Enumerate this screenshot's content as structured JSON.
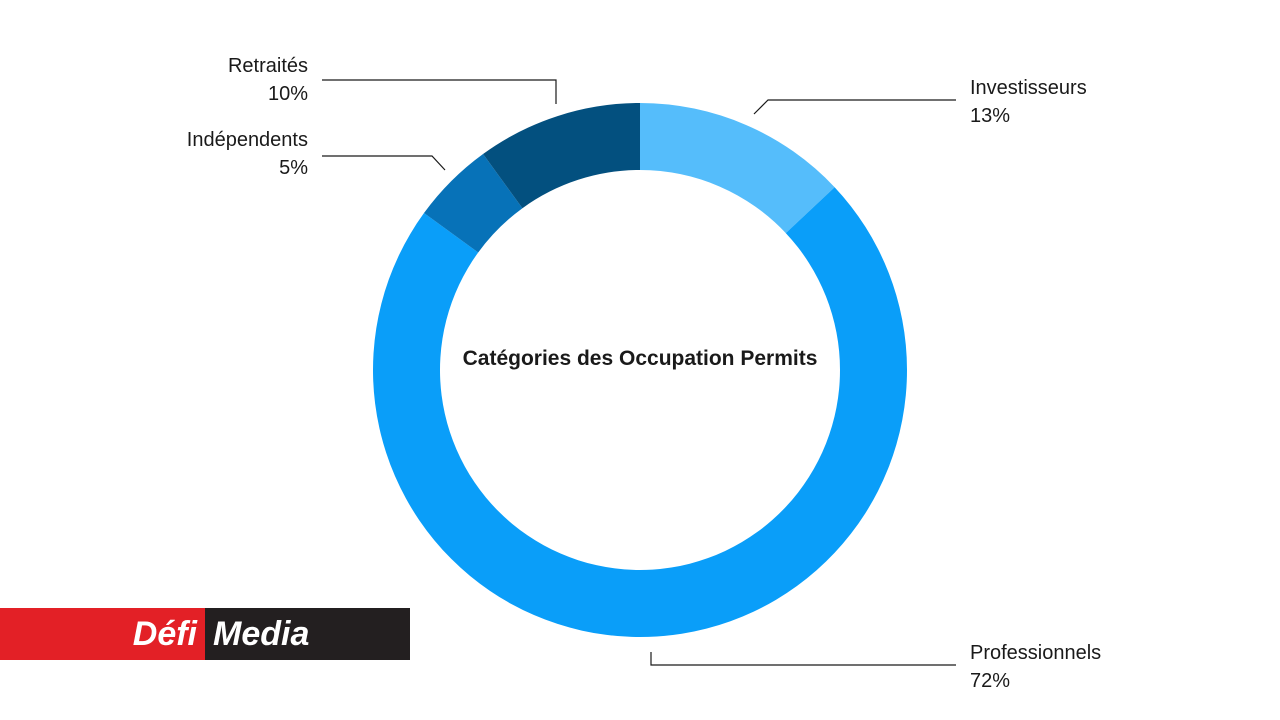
{
  "chart_data": {
    "type": "pie",
    "title": "Catégories des Occupation Permits",
    "categories": [
      "Investisseurs",
      "Professionnels",
      "Indépendents",
      "Retraités"
    ],
    "values": [
      13,
      72,
      5,
      10
    ],
    "value_labels": [
      "13%",
      "72%",
      "5%",
      "10%"
    ],
    "colors": [
      "#55bdfb",
      "#0a9ef9",
      "#0772b8",
      "#03507f"
    ],
    "donut": true,
    "start_angle": "12 o'clock",
    "direction": "clockwise"
  },
  "logo": {
    "part1": "Défi",
    "part2": "Media"
  }
}
